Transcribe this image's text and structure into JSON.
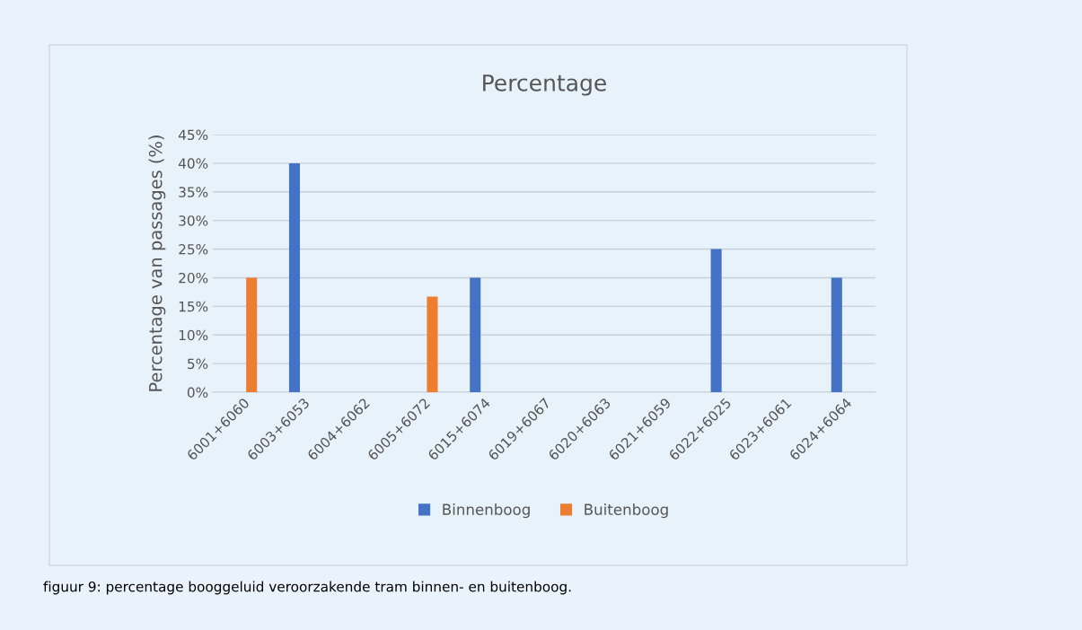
{
  "chart_data": {
    "type": "bar",
    "title": "Percentage",
    "ylabel": "Percentage van passages (%)",
    "categories": [
      "6001+6060",
      "6003+6053",
      "6004+6062",
      "6005+6072",
      "6015+6074",
      "6019+6067",
      "6020+6063",
      "6021+6059",
      "6022+6025",
      "6023+6061",
      "6024+6064"
    ],
    "series": [
      {
        "name": "Binnenboog",
        "color": "#4472c4",
        "values": [
          null,
          40,
          null,
          null,
          20,
          null,
          null,
          null,
          25,
          null,
          20
        ]
      },
      {
        "name": "Buitenboog",
        "color": "#ed7d31",
        "values": [
          20,
          null,
          null,
          16.7,
          null,
          null,
          null,
          null,
          null,
          null,
          null
        ]
      }
    ],
    "ylim": [
      0,
      45
    ],
    "yticks": [
      {
        "value": 0,
        "label": "0%"
      },
      {
        "value": 5,
        "label": "5%"
      },
      {
        "value": 10,
        "label": "10%"
      },
      {
        "value": 15,
        "label": "15%"
      },
      {
        "value": 20,
        "label": "20%"
      },
      {
        "value": 25,
        "label": "25%"
      },
      {
        "value": 30,
        "label": "30%"
      },
      {
        "value": 35,
        "label": "35%"
      },
      {
        "value": 40,
        "label": "40%"
      },
      {
        "value": 45,
        "label": "45%"
      }
    ],
    "grid": "y",
    "legend": "bottom",
    "annotations": [
      "figuur 9: percentage booggeluid veroorzakende tram binnen- en buitenboog."
    ]
  }
}
